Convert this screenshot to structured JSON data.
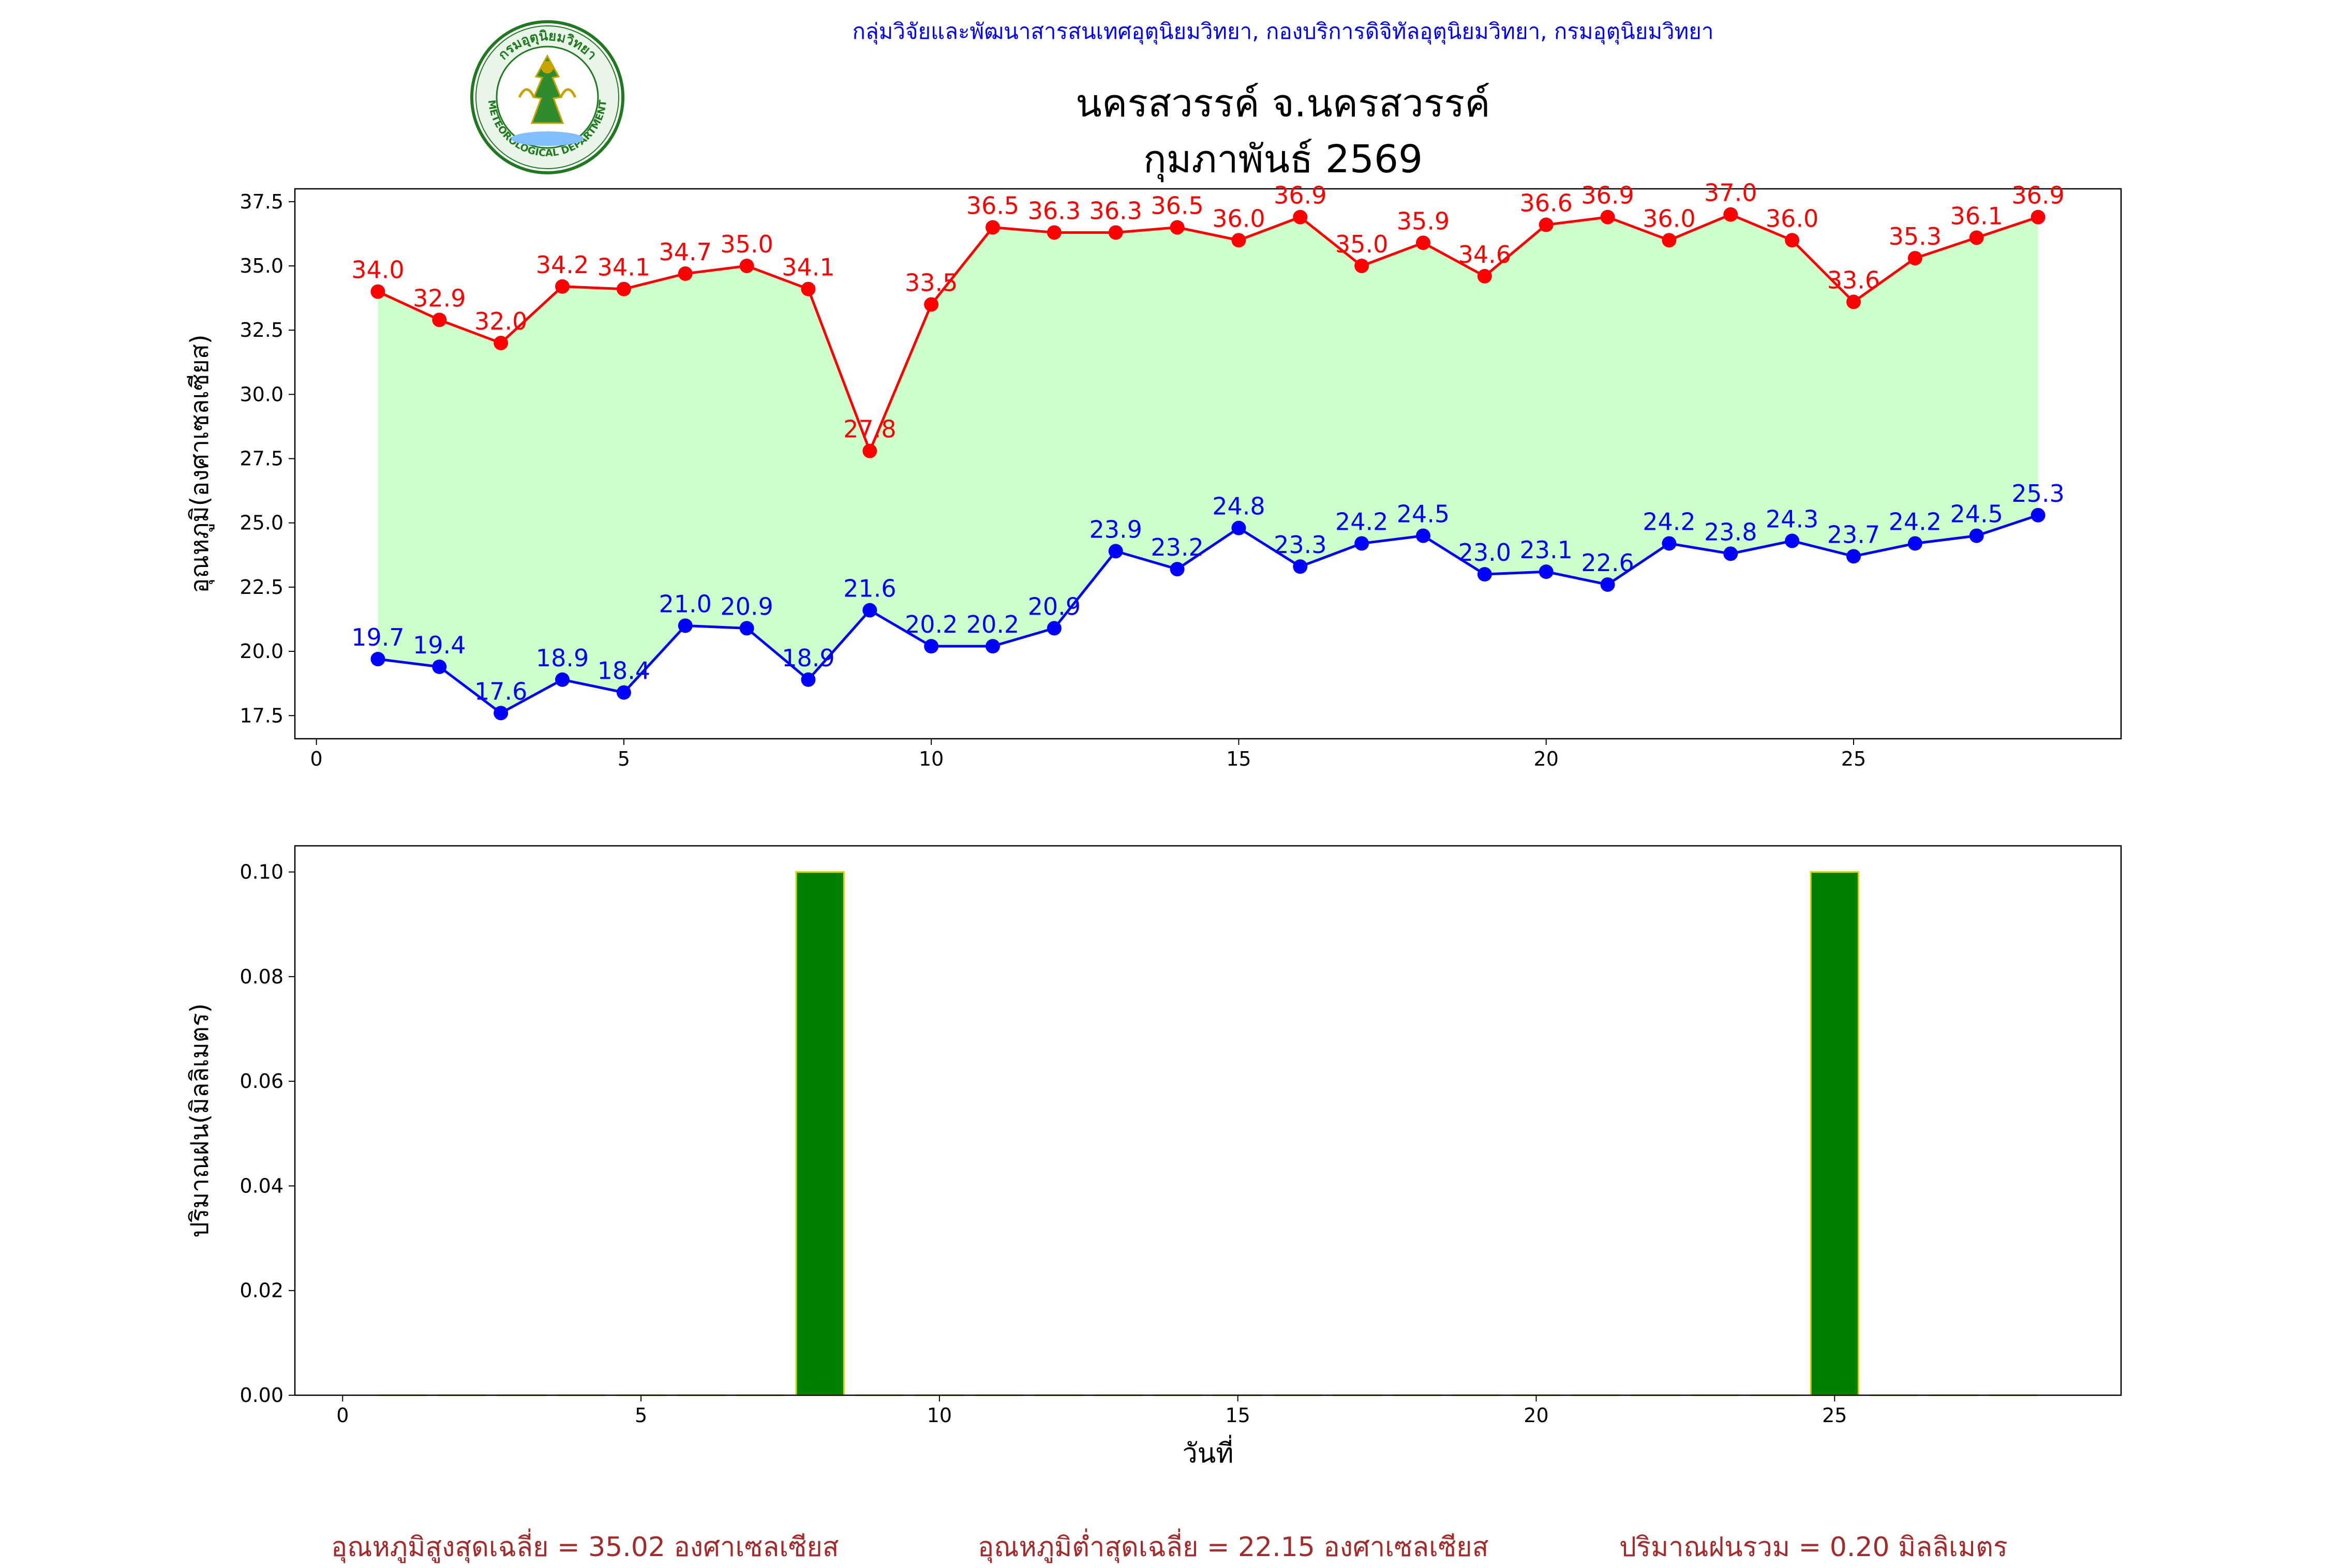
{
  "header": {
    "org_line": "กลุ่มวิจัยและพัฒนาสารสนเทศอุตุนิยมวิทยา, กองบริการดิจิทัลอุตุนิยมวิทยา, กรมอุตุนิยมวิทยา",
    "station": "นครสวรรค์  จ.นครสวรรค์",
    "month": "กุมภาพันธ์ 2569",
    "logo_text_top": "กรมอุตุนิยมวิทยา",
    "logo_text_bottom": "METEOROLOGICAL DEPARTMENT"
  },
  "chart_data": [
    {
      "type": "line",
      "ylabel": "อุณหภูมิ(องศาเซลเซียส)",
      "xlabel": "",
      "xlim": [
        -0.35,
        29.35
      ],
      "ylim": [
        16.6,
        38.0
      ],
      "xticks": [
        0,
        5,
        10,
        15,
        20,
        25
      ],
      "yticks": [
        17.5,
        20.0,
        22.5,
        25.0,
        27.5,
        30.0,
        32.5,
        35.0,
        37.5
      ],
      "fill_between_color": "#ccffcc",
      "x": [
        1,
        2,
        3,
        4,
        5,
        6,
        7,
        8,
        9,
        10,
        11,
        12,
        13,
        14,
        15,
        16,
        17,
        18,
        19,
        20,
        21,
        22,
        23,
        24,
        25,
        26,
        27,
        28
      ],
      "series": [
        {
          "key": "max",
          "color": "#ff0000",
          "values": [
            34.0,
            32.9,
            32.0,
            34.2,
            34.1,
            34.7,
            35.0,
            34.1,
            27.8,
            33.5,
            36.5,
            36.3,
            36.3,
            36.5,
            36.0,
            36.9,
            35.0,
            35.9,
            34.6,
            36.6,
            36.9,
            36.0,
            37.0,
            36.0,
            33.6,
            35.3,
            36.1,
            36.9
          ]
        },
        {
          "key": "min",
          "color": "#0000ff",
          "values": [
            19.7,
            19.4,
            17.6,
            18.9,
            18.4,
            21.0,
            20.9,
            18.9,
            21.6,
            20.2,
            20.2,
            20.9,
            23.9,
            23.2,
            24.8,
            23.3,
            24.2,
            24.5,
            23.0,
            23.1,
            22.6,
            24.2,
            23.8,
            24.3,
            23.7,
            24.2,
            24.5,
            25.3
          ]
        }
      ]
    },
    {
      "type": "bar",
      "ylabel": "ปริมาณฝน(มิลลิเมตร)",
      "xlabel": "วันที่",
      "xlim": [
        -0.8,
        29.8
      ],
      "ylim": [
        0.0,
        0.105
      ],
      "xticks": [
        0,
        5,
        10,
        15,
        20,
        25
      ],
      "yticks": [
        0.0,
        0.02,
        0.04,
        0.06,
        0.08,
        0.1
      ],
      "bar_color": "#008000",
      "edge_color": "#d4d400",
      "x": [
        1,
        2,
        3,
        4,
        5,
        6,
        7,
        8,
        9,
        10,
        11,
        12,
        13,
        14,
        15,
        16,
        17,
        18,
        19,
        20,
        21,
        22,
        23,
        24,
        25,
        26,
        27,
        28
      ],
      "values": [
        0,
        0,
        0,
        0,
        0,
        0,
        0,
        0.1,
        0,
        0,
        0,
        0,
        0,
        0,
        0,
        0,
        0,
        0,
        0,
        0,
        0,
        0,
        0,
        0,
        0.1,
        0,
        0,
        0
      ]
    }
  ],
  "summary": {
    "avg_max": "อุณหภูมิสูงสุดเฉลี่ย = 35.02 องศาเซลเซียส",
    "avg_min": "อุณหภูมิต่ำสุดเฉลี่ย = 22.15 องศาเซลเซียส",
    "total_rain": "ปริมาณฝนรวม = 0.20 มิลลิเมตร"
  }
}
